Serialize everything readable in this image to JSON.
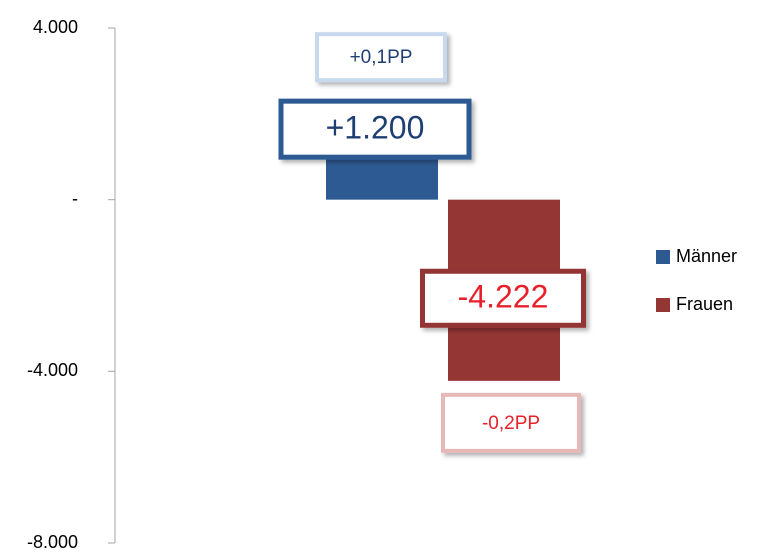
{
  "chart_data": {
    "type": "bar",
    "categories": [
      null
    ],
    "series": [
      {
        "name": "Männer",
        "color": "#2e5a94",
        "values": [
          1200
        ],
        "value_labels": [
          "+1.200"
        ],
        "change_labels": [
          "+0,1PP"
        ],
        "label_color": "#1f3f73",
        "change_border": "#c6d9ef"
      },
      {
        "name": "Frauen",
        "color": "#943634",
        "values": [
          -4222
        ],
        "value_labels": [
          "-4.222"
        ],
        "change_labels": [
          "-0,2PP"
        ],
        "label_color": "#e8202a",
        "change_border": "#e6b9b8"
      }
    ],
    "ylim": [
      -8000,
      4000
    ],
    "yticks": [
      {
        "value": 4000,
        "label": "4.000"
      },
      {
        "value": 0,
        "label": "-"
      },
      {
        "value": -4000,
        "label": "-4.000"
      },
      {
        "value": -8000,
        "label": "-8.000"
      }
    ],
    "legend": "right"
  }
}
